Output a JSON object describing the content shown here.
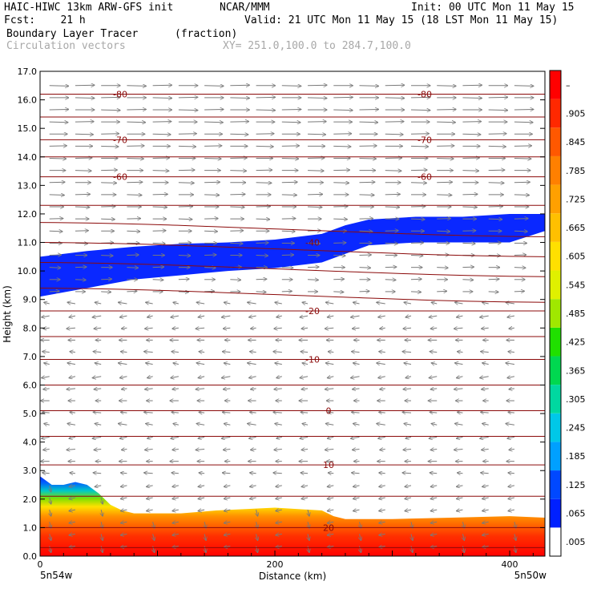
{
  "header": {
    "model": "HAIC-HIWC 13km ARW-GFS init",
    "org": "NCAR/MMM",
    "init": "Init: 00 UTC Mon 11 May 15",
    "fcst": "Fcst:    21 h",
    "valid": "Valid: 21 UTC Mon 11 May 15 (18 LST Mon 11 May 15)",
    "field": "Boundary Layer Tracer",
    "units": "(fraction)",
    "vectors": "Circulation vectors",
    "xy": "XY= 251.0,100.0 to 284.7,100.0"
  },
  "chart_data": {
    "type": "heatmap",
    "xlabel": "Distance (km)",
    "ylabel": "Height (km)",
    "xlim": [
      0,
      430
    ],
    "ylim": [
      0,
      17
    ],
    "x_ticks": [
      0,
      200,
      400
    ],
    "y_ticks": [
      "0.0",
      "1.0",
      "2.0",
      "3.0",
      "4.0",
      "5.0",
      "6.0",
      "7.0",
      "8.0",
      "9.0",
      "10.0",
      "11.0",
      "12.0",
      "13.0",
      "14.0",
      "15.0",
      "16.0",
      "17.0"
    ],
    "x_end_labels": [
      "5n54w",
      "5n50w"
    ],
    "colorbar": {
      "labels": [
        ".005",
        ".065",
        ".125",
        ".185",
        ".245",
        ".305",
        ".365",
        ".425",
        ".485",
        ".545",
        ".605",
        ".665",
        ".725",
        ".785",
        ".845",
        ".905",
        "–"
      ],
      "colors": [
        "#ffffff",
        "#0020ff",
        "#0048ff",
        "#00a0ff",
        "#00c8e8",
        "#00d8a0",
        "#00d850",
        "#20e000",
        "#a0e800",
        "#e0f000",
        "#ffe000",
        "#ffc000",
        "#ffa000",
        "#ff8000",
        "#ff5800",
        "#ff2800",
        "#ff0000"
      ]
    },
    "temperature_contours": [
      {
        "label": "-80",
        "y": 16.2
      },
      {
        "label": "-70",
        "y": 14.6
      },
      {
        "label": "-60",
        "y": 13.3
      },
      {
        "label": "-40",
        "y": 11.0
      },
      {
        "label": "-20",
        "y": 8.6
      },
      {
        "label": "-10",
        "y": 6.9
      },
      {
        "label": "0",
        "y": 5.1
      },
      {
        "label": "10",
        "y": 3.2
      },
      {
        "label": "20",
        "y": 1.0
      }
    ],
    "upper_tracer_layer": {
      "x": [
        0,
        40,
        80,
        120,
        160,
        200,
        240,
        260,
        280,
        320,
        360,
        400,
        430
      ],
      "bottom": [
        9.1,
        9.4,
        9.7,
        9.85,
        10.0,
        10.1,
        10.3,
        10.6,
        10.9,
        11.0,
        11.0,
        11.0,
        11.4
      ],
      "top": [
        10.5,
        10.7,
        10.85,
        10.95,
        11.0,
        11.1,
        11.3,
        11.6,
        11.8,
        11.9,
        11.9,
        12.0,
        12.0
      ]
    },
    "boundary_layer_top": {
      "x": [
        0,
        10,
        20,
        30,
        40,
        50,
        60,
        70,
        80,
        100,
        120,
        150,
        200,
        240,
        250,
        260,
        300,
        350,
        400,
        430
      ],
      "y": [
        2.8,
        2.5,
        2.5,
        2.6,
        2.5,
        2.2,
        1.8,
        1.6,
        1.5,
        1.5,
        1.5,
        1.6,
        1.7,
        1.6,
        1.4,
        1.3,
        1.3,
        1.35,
        1.4,
        1.35
      ]
    }
  }
}
